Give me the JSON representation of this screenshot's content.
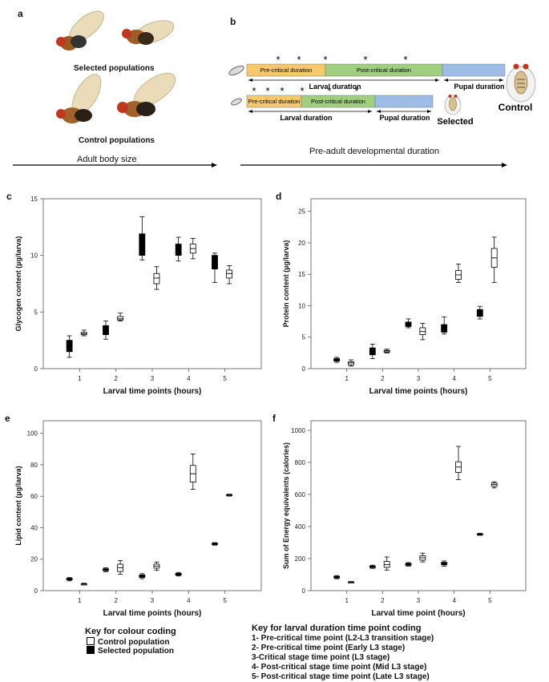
{
  "panel_a": {
    "letter": "a",
    "selected_label": "Selected populations",
    "control_label": "Control populations",
    "axis_label": "Adult body size"
  },
  "panel_b": {
    "letter": "b",
    "control_bar": {
      "pre": "Pre-critical duration",
      "post": "Post-critical duration",
      "larval": "Larval duration",
      "pupal": "Pupal duration"
    },
    "selected_bar": {
      "pre": "Pre-critical duration",
      "post": "Post-critical duration",
      "larval": "Larval duration",
      "pupal": "Pupal duration"
    },
    "control_label": "Control",
    "selected_label": "Selected",
    "axis_label": "Pre-adult developmental duration",
    "asterisk": "*",
    "colors": {
      "pre": "#f7c96a",
      "post": "#9fcf7f",
      "pupal": "#9dbde6"
    }
  },
  "chart_data": [
    {
      "panel": "c",
      "type": "box",
      "ylabel": "Glycogen content (µg/larva)",
      "xlabel": "Larval time points (hours)",
      "categories": [
        "1",
        "2",
        "3",
        "4",
        "5"
      ],
      "yticks": [
        0,
        5,
        10,
        15
      ],
      "ylim": [
        0,
        15
      ],
      "series": [
        {
          "name": "Selected population",
          "fill": "#000000",
          "boxes": [
            [
              1.0,
              1.5,
              2.0,
              2.5,
              2.9
            ],
            [
              2.6,
              3.0,
              3.4,
              3.8,
              4.2
            ],
            [
              9.6,
              10.0,
              11.0,
              11.9,
              13.4
            ],
            [
              9.5,
              10.0,
              10.5,
              11.0,
              11.6
            ],
            [
              7.6,
              8.8,
              9.3,
              10.0,
              10.2
            ]
          ]
        },
        {
          "name": "Control population",
          "fill": "#ffffff",
          "boxes": [
            [
              2.9,
              3.0,
              3.1,
              3.2,
              3.4
            ],
            [
              4.2,
              4.3,
              4.4,
              4.6,
              4.9
            ],
            [
              7.0,
              7.5,
              8.0,
              8.4,
              9.0
            ],
            [
              9.7,
              10.2,
              10.6,
              11.0,
              11.5
            ],
            [
              7.5,
              8.0,
              8.4,
              8.7,
              9.1
            ]
          ]
        }
      ]
    },
    {
      "panel": "d",
      "type": "box",
      "ylabel": "Protein content (µg/larva)",
      "xlabel": "Larval time points (hours)",
      "categories": [
        "1",
        "2",
        "3",
        "4",
        "5"
      ],
      "yticks": [
        0,
        5,
        10,
        15,
        20,
        25
      ],
      "ylim": [
        0,
        27
      ],
      "series": [
        {
          "name": "Selected population",
          "fill": "#000000",
          "boxes": [
            [
              1.0,
              1.2,
              1.4,
              1.6,
              1.8
            ],
            [
              1.6,
              2.2,
              2.7,
              3.3,
              3.9
            ],
            [
              6.5,
              6.7,
              7.0,
              7.4,
              7.9
            ],
            [
              5.5,
              5.8,
              6.4,
              7.0,
              8.2
            ],
            [
              7.9,
              8.3,
              8.9,
              9.4,
              9.9
            ]
          ]
        },
        {
          "name": "Control population",
          "fill": "#ffffff",
          "boxes": [
            [
              0.4,
              0.6,
              0.9,
              1.1,
              1.4
            ],
            [
              2.5,
              2.6,
              2.8,
              2.9,
              3.1
            ],
            [
              4.6,
              5.4,
              5.9,
              6.5,
              7.2
            ],
            [
              13.7,
              14.2,
              14.9,
              15.6,
              16.6
            ],
            [
              13.7,
              16.1,
              17.6,
              19.1,
              20.9
            ]
          ]
        }
      ]
    },
    {
      "panel": "e",
      "type": "box",
      "ylabel": "Lipid content (µg/larva)",
      "xlabel": "Larval time points (hours)",
      "categories": [
        "1",
        "2",
        "3",
        "4",
        "5"
      ],
      "yticks": [
        0,
        20,
        40,
        60,
        80,
        100
      ],
      "ylim": [
        0,
        108
      ],
      "series": [
        {
          "name": "Selected population",
          "fill": "#000000",
          "boxes": [
            [
              6.2,
              6.8,
              7.3,
              7.9,
              8.3
            ],
            [
              12.0,
              12.7,
              13.3,
              13.9,
              14.5
            ],
            [
              7.6,
              8.4,
              9.2,
              10.0,
              10.8
            ],
            [
              9.3,
              9.8,
              10.4,
              11.0,
              11.6
            ],
            [
              28.9,
              29.3,
              29.7,
              30.1,
              30.5
            ]
          ]
        },
        {
          "name": "Control population",
          "fill": "#ffffff",
          "boxes": [
            [
              3.6,
              3.9,
              4.2,
              4.4,
              4.7
            ],
            [
              10.5,
              12.2,
              14.6,
              16.8,
              19.1
            ],
            [
              12.9,
              14.3,
              15.6,
              16.8,
              18.2
            ],
            [
              64.4,
              69.0,
              74.3,
              79.6,
              86.9
            ],
            [
              60.1,
              60.4,
              60.8,
              61.1,
              61.3
            ]
          ]
        }
      ]
    },
    {
      "panel": "f",
      "type": "box",
      "ylabel": "Sum of Energy equivalents (calories)",
      "xlabel": "Larval time point (hours)",
      "categories": [
        "1",
        "2",
        "3",
        "4",
        "5"
      ],
      "yticks": [
        0,
        200,
        400,
        600,
        800,
        1000
      ],
      "ylim": [
        0,
        1060
      ],
      "series": [
        {
          "name": "Selected population",
          "fill": "#000000",
          "boxes": [
            [
              74,
              79,
              84,
              89,
              94
            ],
            [
              139,
              144,
              149,
              154,
              159
            ],
            [
              153,
              158,
              164,
              170,
              175
            ],
            [
              153,
              161,
              169,
              177,
              185
            ],
            [
              345,
              348,
              351,
              355,
              358
            ]
          ]
        },
        {
          "name": "Control population",
          "fill": "#ffffff",
          "boxes": [
            [
              49,
              51,
              53,
              55,
              57
            ],
            [
              128,
              145,
              163,
              182,
              210
            ],
            [
              179,
              190,
              205,
              217,
              234
            ],
            [
              693,
              738,
              771,
              804,
              900
            ],
            [
              641,
              651,
              662,
              671,
              679
            ]
          ]
        }
      ]
    }
  ],
  "key_colour": {
    "title": "Key for colour coding",
    "control": "Control population",
    "selected": "Selected population"
  },
  "key_time": {
    "title": "Key for larval duration time point coding",
    "lines": [
      "1- Pre-critical time point (L2-L3 transition stage)",
      "2- Pre-critical time point (Early L3 stage)",
      "3-Critical stage time point (L3 stage)",
      "4- Post-critical stage time point (Mid L3 stage)",
      "5- Post-critical stage time point (Late L3 stage)"
    ]
  }
}
